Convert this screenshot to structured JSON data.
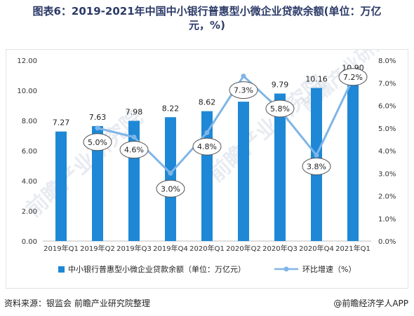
{
  "title_line1": "图表6：2019-2021年中国中小银行普惠型小微企业贷款余额(单位：万亿",
  "title_line2": "元，%)",
  "source": "资料来源：银监会 前瞻产业研究院整理",
  "brand": "@前瞻经济学人APP",
  "watermark": "前瞻产业研究院",
  "chart_data": {
    "type": "bar",
    "categories": [
      "2019年Q1",
      "2019年Q2",
      "2019年Q3",
      "2019年Q4",
      "2020年Q1",
      "2020年Q2",
      "2020年Q3",
      "2020年Q4",
      "2021年Q1"
    ],
    "series": [
      {
        "name": "中小银行普惠型小微企业贷款余额（单位：万亿元）",
        "type": "bar",
        "axis": "left",
        "values": [
          7.27,
          7.63,
          7.98,
          8.22,
          8.62,
          null,
          9.79,
          10.16,
          10.9
        ],
        "value_labels": [
          "7.27",
          "7.63",
          "7.98",
          "8.22",
          "8.62",
          "",
          "9.79",
          "10.16",
          "10.90"
        ],
        "estimated_unlabeled_values": {
          "2020年Q2": 9.25
        },
        "color": "#1e88d6"
      },
      {
        "name": "环比增速（%）",
        "type": "line",
        "axis": "right",
        "values": [
          null,
          5.0,
          4.6,
          3.0,
          4.8,
          7.3,
          5.8,
          3.8,
          7.2
        ],
        "value_labels": [
          "",
          "5.0%",
          "4.6%",
          "3.0%",
          "4.8%",
          "7.3%",
          "5.8%",
          "3.8%",
          "7.2%"
        ],
        "color": "#7fb5e6"
      }
    ],
    "y_left": {
      "min": 0,
      "max": 12,
      "step": 2,
      "tick_labels": [
        "0.00",
        "2.00",
        "4.00",
        "6.00",
        "8.00",
        "10.00",
        "12.00"
      ]
    },
    "y_right": {
      "min": 0,
      "max": 8,
      "step": 1,
      "tick_labels": [
        "0.0%",
        "1.0%",
        "2.0%",
        "3.0%",
        "4.0%",
        "5.0%",
        "6.0%",
        "7.0%",
        "8.0%"
      ]
    },
    "grid": false,
    "legend_position": "bottom"
  }
}
